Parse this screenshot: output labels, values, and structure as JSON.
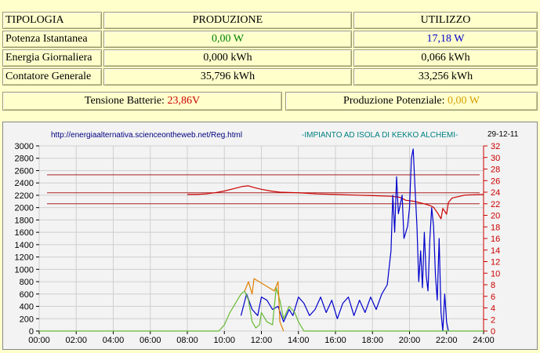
{
  "table": {
    "header": {
      "col1": "TIPOLOGIA",
      "col2": "PRODUZIONE",
      "col3": "UTILIZZO"
    },
    "rows": [
      {
        "label": "Potenza Istantanea",
        "produzione": "0,00 W",
        "utilizzo": "17,18 W"
      },
      {
        "label": "Energia Giornaliera",
        "produzione": "0,000 kWh",
        "utilizzo": "0,066 kWh"
      },
      {
        "label": "Contatore Generale",
        "produzione": "35,796 kWh",
        "utilizzo": "33,256 kWh"
      }
    ]
  },
  "status": {
    "tensione_label": "Tensione Batterie:",
    "tensione_value": "23,86V",
    "potenziale_label": "Produzione Potenziale:",
    "potenziale_value": "0,00 W"
  },
  "chart_header": {
    "url": "http://energiaalternativa.scienceontheweb.net/Reg.html",
    "title": "-IMPIANTO AD ISOLA DI KEKKO ALCHEMI-",
    "date": "29-12-11"
  },
  "colors": {
    "background": "#ffffcc",
    "production_green": "#008000",
    "usage_blue": "#0000cc",
    "battery_red": "#cc0000",
    "potential_gold": "#d4a000"
  },
  "chart_data": {
    "type": "line",
    "xlabel": "",
    "ylabel": "",
    "xlim": [
      0,
      24
    ],
    "ylim": [
      0,
      3000
    ],
    "y2lim": [
      0,
      32
    ],
    "x_ticks": [
      "00:00",
      "02:00",
      "04:00",
      "06:00",
      "08:00",
      "10:00",
      "12:00",
      "14:00",
      "16:00",
      "18:00",
      "20:00",
      "22:00",
      "24:00"
    ],
    "y_ticks": [
      0,
      200,
      400,
      600,
      800,
      1000,
      1200,
      1400,
      1600,
      1800,
      2000,
      2200,
      2400,
      2600,
      2800,
      3000
    ],
    "y2_ticks": [
      0,
      2,
      4,
      6,
      8,
      10,
      12,
      14,
      16,
      18,
      20,
      22,
      24,
      26,
      28,
      30,
      32
    ],
    "grid": true,
    "reference_lines_right_axis": [
      27,
      23.9,
      22
    ],
    "series": [
      {
        "axis": "right",
        "color": "#cc0000",
        "points": [
          [
            8.0,
            23.6
          ],
          [
            8.5,
            23.6
          ],
          [
            9.0,
            23.7
          ],
          [
            9.5,
            23.9
          ],
          [
            10.0,
            24.2
          ],
          [
            10.5,
            24.6
          ],
          [
            11.0,
            25.0
          ],
          [
            11.3,
            25.1
          ],
          [
            11.6,
            24.8
          ],
          [
            12.0,
            24.5
          ],
          [
            12.5,
            24.2
          ],
          [
            13.0,
            24.0
          ],
          [
            14.0,
            23.9
          ],
          [
            15.0,
            23.7
          ],
          [
            16.0,
            23.6
          ],
          [
            17.0,
            23.5
          ],
          [
            18.0,
            23.4
          ],
          [
            19.0,
            23.3
          ],
          [
            19.5,
            23.1
          ],
          [
            19.8,
            22.6
          ],
          [
            20.1,
            22.5
          ],
          [
            20.4,
            22.3
          ],
          [
            20.8,
            22.0
          ],
          [
            21.1,
            21.7
          ],
          [
            21.3,
            21.4
          ],
          [
            21.5,
            20.5
          ],
          [
            21.7,
            19.4
          ],
          [
            21.8,
            21.2
          ],
          [
            22.0,
            20.2
          ],
          [
            22.1,
            22.2
          ],
          [
            22.3,
            23.0
          ],
          [
            23.0,
            23.5
          ],
          [
            24.0,
            23.6
          ]
        ]
      },
      {
        "axis": "left",
        "color": "#0000cc",
        "points": [
          [
            10.9,
            250
          ],
          [
            11.2,
            600
          ],
          [
            11.5,
            350
          ],
          [
            11.8,
            250
          ],
          [
            12.0,
            550
          ],
          [
            12.3,
            500
          ],
          [
            12.6,
            350
          ],
          [
            12.9,
            400
          ],
          [
            13.2,
            150
          ],
          [
            13.5,
            350
          ],
          [
            13.7,
            250
          ],
          [
            14.0,
            550
          ],
          [
            14.3,
            450
          ],
          [
            14.6,
            250
          ],
          [
            14.9,
            350
          ],
          [
            15.2,
            550
          ],
          [
            15.5,
            300
          ],
          [
            15.8,
            500
          ],
          [
            16.1,
            200
          ],
          [
            16.4,
            450
          ],
          [
            16.7,
            550
          ],
          [
            17.0,
            250
          ],
          [
            17.3,
            500
          ],
          [
            17.6,
            300
          ],
          [
            17.9,
            550
          ],
          [
            18.2,
            350
          ],
          [
            18.5,
            600
          ],
          [
            18.8,
            750
          ],
          [
            19.0,
            1300
          ],
          [
            19.1,
            2200
          ],
          [
            19.2,
            1600
          ],
          [
            19.3,
            2500
          ],
          [
            19.4,
            1900
          ],
          [
            19.6,
            2200
          ],
          [
            19.7,
            1500
          ],
          [
            19.9,
            1700
          ],
          [
            20.0,
            2000
          ],
          [
            20.1,
            2800
          ],
          [
            20.2,
            2950
          ],
          [
            20.3,
            2300
          ],
          [
            20.4,
            1700
          ],
          [
            20.5,
            800
          ],
          [
            20.6,
            1300
          ],
          [
            20.7,
            700
          ],
          [
            20.8,
            1600
          ],
          [
            20.9,
            900
          ],
          [
            21.0,
            650
          ],
          [
            21.1,
            1500
          ],
          [
            21.2,
            2000
          ],
          [
            21.3,
            1700
          ],
          [
            21.4,
            900
          ],
          [
            21.5,
            500
          ],
          [
            21.6,
            1500
          ],
          [
            21.7,
            300
          ],
          [
            21.8,
            0
          ],
          [
            21.9,
            600
          ],
          [
            22.0,
            150
          ],
          [
            22.1,
            0
          ]
        ]
      },
      {
        "axis": "left",
        "color": "#66bb33",
        "points": [
          [
            0.0,
            0
          ],
          [
            9.7,
            0
          ],
          [
            10.0,
            100
          ],
          [
            10.3,
            300
          ],
          [
            10.6,
            450
          ],
          [
            10.9,
            600
          ],
          [
            11.1,
            650
          ],
          [
            11.3,
            500
          ],
          [
            11.5,
            150
          ],
          [
            11.7,
            50
          ],
          [
            11.9,
            100
          ],
          [
            12.0,
            300
          ],
          [
            12.3,
            150
          ],
          [
            12.6,
            100
          ],
          [
            12.8,
            700
          ],
          [
            13.0,
            500
          ],
          [
            13.2,
            200
          ],
          [
            13.5,
            400
          ],
          [
            13.8,
            300
          ],
          [
            14.0,
            150
          ],
          [
            14.3,
            0
          ],
          [
            24.0,
            0
          ]
        ]
      },
      {
        "axis": "left",
        "color": "#e08000",
        "points": [
          [
            11.1,
            650
          ],
          [
            11.3,
            800
          ],
          [
            11.5,
            600
          ],
          [
            11.6,
            850
          ],
          [
            12.7,
            650
          ],
          [
            12.9,
            800
          ],
          [
            13.0,
            150
          ],
          [
            13.2,
            0
          ]
        ]
      }
    ]
  }
}
